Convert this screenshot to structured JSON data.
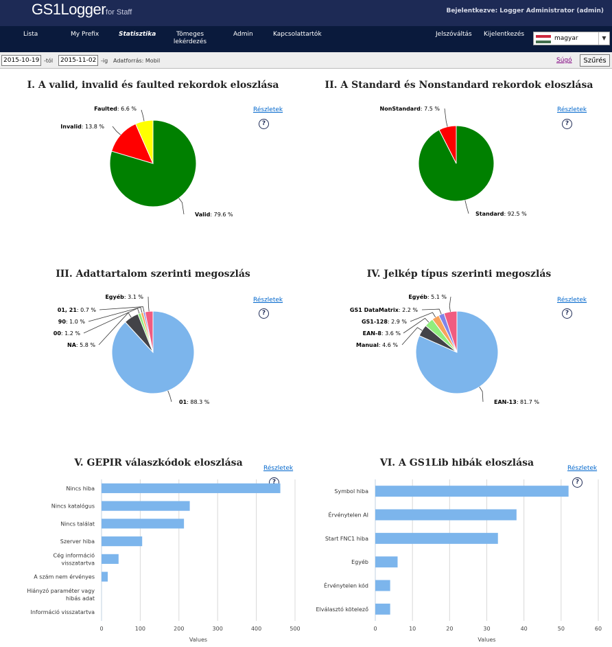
{
  "header": {
    "logo_main": "GS1Logger",
    "logo_sub": "for Staff",
    "logged_in": "Bejelentkezve: Logger Administrator (admin)"
  },
  "nav": {
    "items": [
      "Lista",
      "My Prefix",
      "Statisztika",
      "Tömeges lekérdezés",
      "Admin",
      "Kapcsolattartók"
    ],
    "password": "Jelszóváltás",
    "logout": "Kijelentkezés",
    "language": "magyar"
  },
  "filter": {
    "from": "2015-10-19",
    "from_suffix": "-tól",
    "to": "2015-11-02",
    "to_suffix": "-ig",
    "source": "Adatforrás: Mobil",
    "help": "Súgó",
    "button": "Szűrés"
  },
  "details_label": "Részletek",
  "question_mark": "?",
  "colors": {
    "header_bg": "#1d2a55",
    "nav_bg": "#0a1a3c",
    "green": "#008000",
    "red": "#ff0000",
    "yellow": "#ffff00",
    "blue": "#7cb5ec",
    "dark": "#434348",
    "lightgreen": "#90ed7d",
    "orange": "#f7a35c",
    "purple": "#8085e9",
    "pink": "#f15c80",
    "gold": "#e4d354"
  },
  "chart_data": [
    {
      "type": "pie",
      "title": "I. A valid, invalid és faulted rekordok eloszlása",
      "slices": [
        {
          "name": "Valid",
          "value": 79.6,
          "label": "79.6 %",
          "color": "#008000"
        },
        {
          "name": "Invalid",
          "value": 13.8,
          "label": "13.8 %",
          "color": "#ff0000"
        },
        {
          "name": "Faulted",
          "value": 6.6,
          "label": "6.6 %",
          "color": "#ffff00"
        }
      ]
    },
    {
      "type": "pie",
      "title": "II. A Standard és Nonstandard rekordok eloszlása",
      "slices": [
        {
          "name": "Standard",
          "value": 92.5,
          "label": "92.5 %",
          "color": "#008000"
        },
        {
          "name": "NonStandard",
          "value": 7.5,
          "label": "7.5 %",
          "color": "#ff0000"
        }
      ]
    },
    {
      "type": "pie",
      "title": "III. Adattartalom szerinti megoszlás",
      "slices": [
        {
          "name": "01",
          "value": 88.3,
          "label": "88.3 %",
          "color": "#7cb5ec"
        },
        {
          "name": "NA",
          "value": 5.8,
          "label": "5.8 %",
          "color": "#434348"
        },
        {
          "name": "00",
          "value": 1.2,
          "label": "1.2 %",
          "color": "#90ed7d"
        },
        {
          "name": "90",
          "value": 1.0,
          "label": "1.0 %",
          "color": "#f7a35c"
        },
        {
          "name": "01, 21",
          "value": 0.7,
          "label": "0.7 %",
          "color": "#8085e9"
        },
        {
          "name": "Egyéb",
          "value": 3.1,
          "label": "3.1 %",
          "color": "#f15c80"
        }
      ]
    },
    {
      "type": "pie",
      "title": "IV. Jelkép típus szerinti megoszlás",
      "slices": [
        {
          "name": "EAN-13",
          "value": 81.7,
          "label": "81.7 %",
          "color": "#7cb5ec"
        },
        {
          "name": "Manual",
          "value": 4.6,
          "label": "4.6 %",
          "color": "#434348"
        },
        {
          "name": "EAN-8",
          "value": 3.6,
          "label": "3.6 %",
          "color": "#90ed7d"
        },
        {
          "name": "GS1-128",
          "value": 2.9,
          "label": "2.9 %",
          "color": "#f7a35c"
        },
        {
          "name": "GS1 DataMatrix",
          "value": 2.2,
          "label": "2.2 %",
          "color": "#8085e9"
        },
        {
          "name": "Egyéb",
          "value": 5.1,
          "label": "5.1 %",
          "color": "#f15c80"
        }
      ]
    },
    {
      "type": "bar",
      "title": "V. GEPIR válaszkódok eloszlása",
      "categories": [
        "Nincs hiba",
        "Nincs katalógus",
        "Nincs találat",
        "Szerver hiba",
        "Cég információ visszatartva",
        "A szám nem érvényes",
        "Hiányzó paraméter vagy hibás adat",
        "Információ visszatartva"
      ],
      "values": [
        462,
        228,
        213,
        105,
        44,
        16,
        0,
        0
      ],
      "xlabel": "Values",
      "xlim": [
        0,
        500
      ],
      "ticks": [
        0,
        100,
        200,
        300,
        400,
        500
      ],
      "color": "#7cb5ec"
    },
    {
      "type": "bar",
      "title": "VI. A GS1Lib hibák eloszlása",
      "categories": [
        "Symbol hiba",
        "Érvénytelen AI",
        "Start FNC1 hiba",
        "Egyéb",
        "Érvénytelen kód",
        "Elválasztó kötelező"
      ],
      "values": [
        52,
        38,
        33,
        6,
        4,
        4
      ],
      "xlabel": "Values",
      "xlim": [
        0,
        60
      ],
      "ticks": [
        0,
        10,
        20,
        30,
        40,
        50,
        60
      ],
      "color": "#7cb5ec"
    }
  ]
}
